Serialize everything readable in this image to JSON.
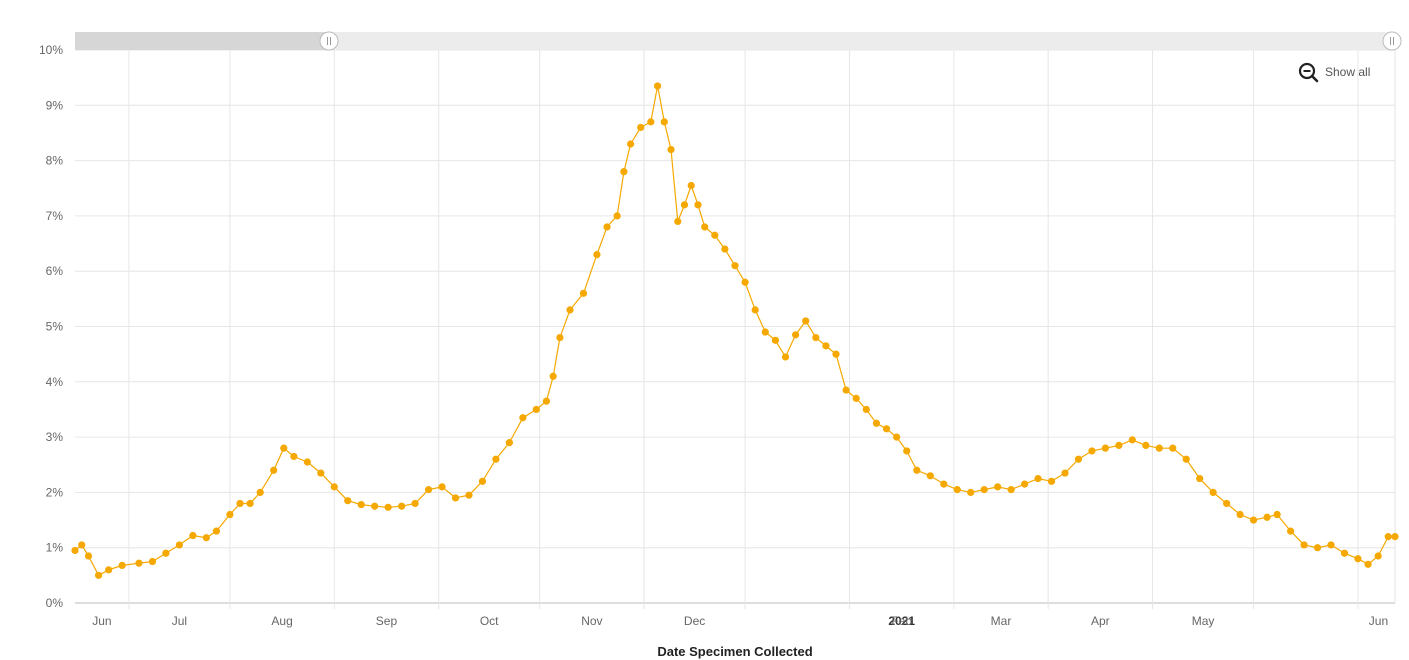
{
  "header": {
    "partial_title": ""
  },
  "zoom": {
    "show_all_label": "Show all",
    "icon": "zoom-out-magnifier-icon",
    "range_start_fraction": 0.0,
    "range_end_fraction": 0.19
  },
  "colors": {
    "series": "#F5A800",
    "grid": "#e6e6e6",
    "scroll_track": "#ececec",
    "scroll_selected": "#d6d6d6"
  },
  "chart_data": {
    "type": "line",
    "xlabel": "Date Specimen Collected",
    "ylabel": "",
    "x_scale": "date",
    "x_range": [
      "2020-05-16",
      "2021-06-12"
    ],
    "ylim": [
      0,
      10
    ],
    "y_unit": "%",
    "y_ticks": [
      "0%",
      "1%",
      "2%",
      "3%",
      "4%",
      "5%",
      "6%",
      "7%",
      "8%",
      "9%",
      "10%"
    ],
    "x_ticks": [
      {
        "label": "Jun",
        "date": "2020-06-01",
        "major": false
      },
      {
        "label": "Jul",
        "date": "2020-07-01",
        "major": false
      },
      {
        "label": "Aug",
        "date": "2020-08-01",
        "major": false
      },
      {
        "label": "Sep",
        "date": "2020-09-01",
        "major": false
      },
      {
        "label": "Oct",
        "date": "2020-10-01",
        "major": false
      },
      {
        "label": "Nov",
        "date": "2020-11-01",
        "major": false
      },
      {
        "label": "Dec",
        "date": "2020-12-01",
        "major": false
      },
      {
        "label": "2021",
        "date": "2021-01-01",
        "major": true
      },
      {
        "label": "Feb",
        "date": "2021-02-01",
        "major": false
      },
      {
        "label": "Mar",
        "date": "2021-03-01",
        "major": false
      },
      {
        "label": "Apr",
        "date": "2021-04-01",
        "major": false
      },
      {
        "label": "May",
        "date": "2021-05-01",
        "major": false
      },
      {
        "label": "Jun",
        "date": "2021-06-01",
        "major": false
      }
    ],
    "grid": true,
    "legend": "none",
    "series": [
      {
        "markers": "circle",
        "points": [
          [
            "2020-05-16",
            0.95
          ],
          [
            "2020-05-18",
            1.05
          ],
          [
            "2020-05-20",
            0.85
          ],
          [
            "2020-05-23",
            0.5
          ],
          [
            "2020-05-26",
            0.6
          ],
          [
            "2020-05-30",
            0.68
          ],
          [
            "2020-06-04",
            0.72
          ],
          [
            "2020-06-08",
            0.75
          ],
          [
            "2020-06-12",
            0.9
          ],
          [
            "2020-06-16",
            1.05
          ],
          [
            "2020-06-20",
            1.22
          ],
          [
            "2020-06-24",
            1.18
          ],
          [
            "2020-06-27",
            1.3
          ],
          [
            "2020-07-01",
            1.6
          ],
          [
            "2020-07-04",
            1.8
          ],
          [
            "2020-07-07",
            1.8
          ],
          [
            "2020-07-10",
            2.0
          ],
          [
            "2020-07-14",
            2.4
          ],
          [
            "2020-07-17",
            2.8
          ],
          [
            "2020-07-20",
            2.65
          ],
          [
            "2020-07-24",
            2.55
          ],
          [
            "2020-07-28",
            2.35
          ],
          [
            "2020-08-01",
            2.1
          ],
          [
            "2020-08-05",
            1.85
          ],
          [
            "2020-08-09",
            1.78
          ],
          [
            "2020-08-13",
            1.75
          ],
          [
            "2020-08-17",
            1.73
          ],
          [
            "2020-08-21",
            1.75
          ],
          [
            "2020-08-25",
            1.8
          ],
          [
            "2020-08-29",
            2.05
          ],
          [
            "2020-09-02",
            2.1
          ],
          [
            "2020-09-06",
            1.9
          ],
          [
            "2020-09-10",
            1.95
          ],
          [
            "2020-09-14",
            2.2
          ],
          [
            "2020-09-18",
            2.6
          ],
          [
            "2020-09-22",
            2.9
          ],
          [
            "2020-09-26",
            3.35
          ],
          [
            "2020-09-30",
            3.5
          ],
          [
            "2020-10-03",
            3.65
          ],
          [
            "2020-10-05",
            4.1
          ],
          [
            "2020-10-07",
            4.8
          ],
          [
            "2020-10-10",
            5.3
          ],
          [
            "2020-10-14",
            5.6
          ],
          [
            "2020-10-18",
            6.3
          ],
          [
            "2020-10-21",
            6.8
          ],
          [
            "2020-10-24",
            7.0
          ],
          [
            "2020-10-26",
            7.8
          ],
          [
            "2020-10-28",
            8.3
          ],
          [
            "2020-10-31",
            8.6
          ],
          [
            "2020-11-03",
            8.7
          ],
          [
            "2020-11-05",
            9.35
          ],
          [
            "2020-11-07",
            8.7
          ],
          [
            "2020-11-09",
            8.2
          ],
          [
            "2020-11-11",
            6.9
          ],
          [
            "2020-11-13",
            7.2
          ],
          [
            "2020-11-15",
            7.55
          ],
          [
            "2020-11-17",
            7.2
          ],
          [
            "2020-11-19",
            6.8
          ],
          [
            "2020-11-22",
            6.65
          ],
          [
            "2020-11-25",
            6.4
          ],
          [
            "2020-11-28",
            6.1
          ],
          [
            "2020-12-01",
            5.8
          ],
          [
            "2020-12-04",
            5.3
          ],
          [
            "2020-12-07",
            4.9
          ],
          [
            "2020-12-10",
            4.75
          ],
          [
            "2020-12-13",
            4.45
          ],
          [
            "2020-12-16",
            4.85
          ],
          [
            "2020-12-19",
            5.1
          ],
          [
            "2020-12-22",
            4.8
          ],
          [
            "2020-12-25",
            4.65
          ],
          [
            "2020-12-28",
            4.5
          ],
          [
            "2020-12-31",
            3.85
          ],
          [
            "2021-01-03",
            3.7
          ],
          [
            "2021-01-06",
            3.5
          ],
          [
            "2021-01-09",
            3.25
          ],
          [
            "2021-01-12",
            3.15
          ],
          [
            "2021-01-15",
            3.0
          ],
          [
            "2021-01-18",
            2.75
          ],
          [
            "2021-01-21",
            2.4
          ],
          [
            "2021-01-25",
            2.3
          ],
          [
            "2021-01-29",
            2.15
          ],
          [
            "2021-02-02",
            2.05
          ],
          [
            "2021-02-06",
            2.0
          ],
          [
            "2021-02-10",
            2.05
          ],
          [
            "2021-02-14",
            2.1
          ],
          [
            "2021-02-18",
            2.05
          ],
          [
            "2021-02-22",
            2.15
          ],
          [
            "2021-02-26",
            2.25
          ],
          [
            "2021-03-02",
            2.2
          ],
          [
            "2021-03-06",
            2.35
          ],
          [
            "2021-03-10",
            2.6
          ],
          [
            "2021-03-14",
            2.75
          ],
          [
            "2021-03-18",
            2.8
          ],
          [
            "2021-03-22",
            2.85
          ],
          [
            "2021-03-26",
            2.95
          ],
          [
            "2021-03-30",
            2.85
          ],
          [
            "2021-04-03",
            2.8
          ],
          [
            "2021-04-07",
            2.8
          ],
          [
            "2021-04-11",
            2.6
          ],
          [
            "2021-04-15",
            2.25
          ],
          [
            "2021-04-19",
            2.0
          ],
          [
            "2021-04-23",
            1.8
          ],
          [
            "2021-04-27",
            1.6
          ],
          [
            "2021-05-01",
            1.5
          ],
          [
            "2021-05-05",
            1.55
          ],
          [
            "2021-05-08",
            1.6
          ],
          [
            "2021-05-12",
            1.3
          ],
          [
            "2021-05-16",
            1.05
          ],
          [
            "2021-05-20",
            1.0
          ],
          [
            "2021-05-24",
            1.05
          ],
          [
            "2021-05-28",
            0.9
          ],
          [
            "2021-06-01",
            0.8
          ],
          [
            "2021-06-04",
            0.7
          ],
          [
            "2021-06-07",
            0.85
          ],
          [
            "2021-06-10",
            1.2
          ],
          [
            "2021-06-12",
            1.2
          ]
        ]
      }
    ]
  }
}
